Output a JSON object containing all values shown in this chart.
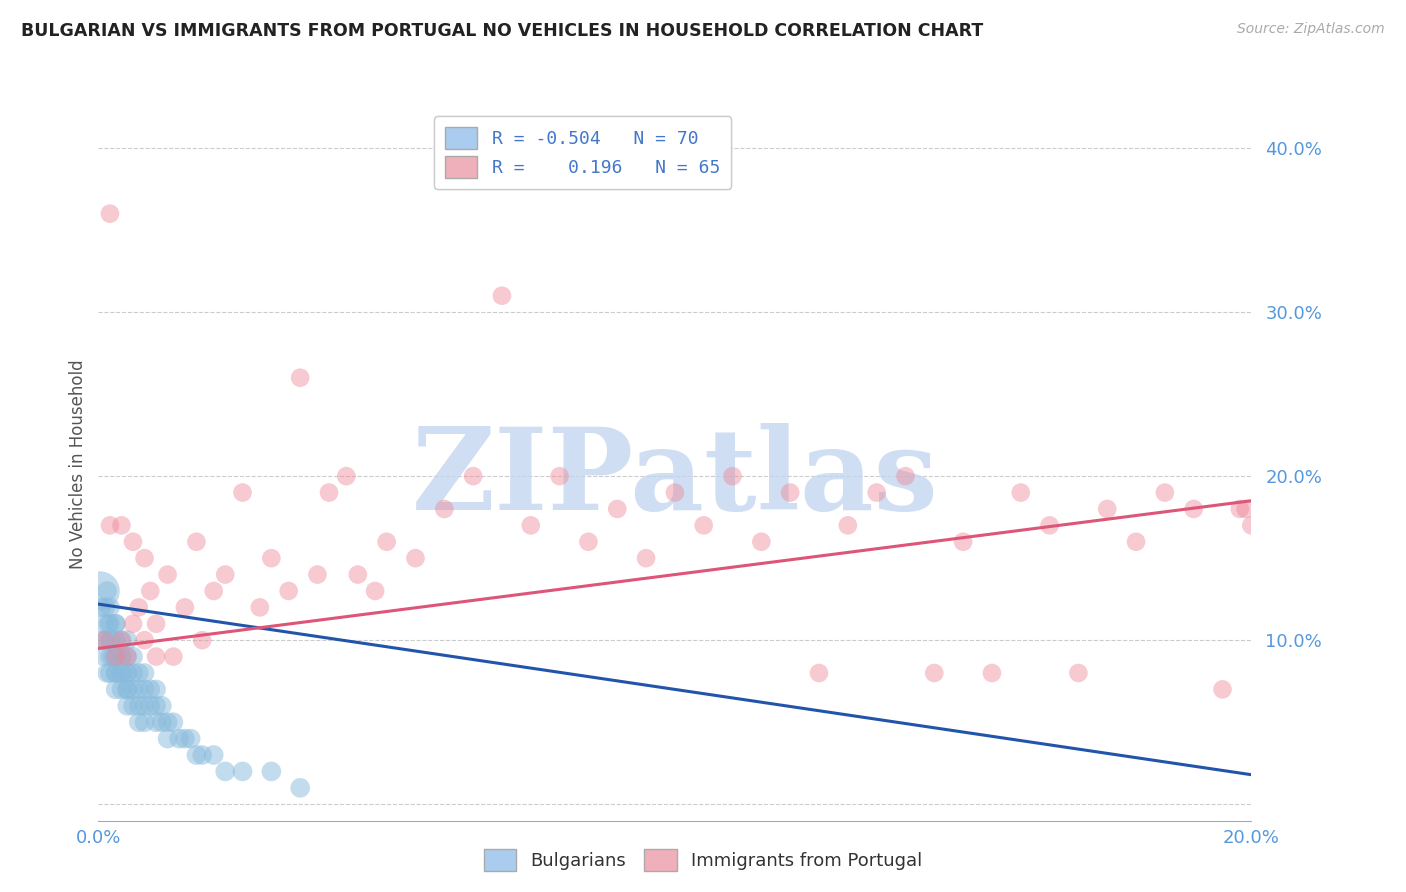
{
  "title": "BULGARIAN VS IMMIGRANTS FROM PORTUGAL NO VEHICLES IN HOUSEHOLD CORRELATION CHART",
  "source": "Source: ZipAtlas.com",
  "ylabel": "No Vehicles in Household",
  "yticks": [
    0.0,
    0.1,
    0.2,
    0.3,
    0.4
  ],
  "ytick_labels": [
    "",
    "10.0%",
    "20.0%",
    "30.0%",
    "40.0%"
  ],
  "xtick_labels": [
    "0.0%",
    "20.0%"
  ],
  "xlim": [
    0.0,
    0.2
  ],
  "ylim": [
    -0.01,
    0.425
  ],
  "watermark": "ZIPatlas",
  "watermark_color": "#c0d4ee",
  "blue_color": "#88bbdd",
  "blue_line_color": "#2255aa",
  "pink_color": "#ee8899",
  "pink_line_color": "#dd5577",
  "dot_size": 180,
  "blue_alpha": 0.5,
  "pink_alpha": 0.45,
  "blue_line_start_y": 0.122,
  "blue_line_end_y": 0.018,
  "pink_line_start_y": 0.095,
  "pink_line_end_y": 0.185,
  "bulgarians_x": [
    0.0003,
    0.0005,
    0.0008,
    0.001,
    0.001,
    0.0012,
    0.0013,
    0.0015,
    0.0015,
    0.0017,
    0.002,
    0.002,
    0.002,
    0.002,
    0.002,
    0.0022,
    0.0025,
    0.003,
    0.003,
    0.003,
    0.003,
    0.003,
    0.003,
    0.003,
    0.003,
    0.004,
    0.004,
    0.004,
    0.004,
    0.004,
    0.004,
    0.005,
    0.005,
    0.005,
    0.005,
    0.005,
    0.005,
    0.005,
    0.006,
    0.006,
    0.006,
    0.006,
    0.007,
    0.007,
    0.007,
    0.007,
    0.008,
    0.008,
    0.008,
    0.008,
    0.009,
    0.009,
    0.01,
    0.01,
    0.01,
    0.011,
    0.011,
    0.012,
    0.012,
    0.013,
    0.014,
    0.015,
    0.016,
    0.017,
    0.018,
    0.02,
    0.022,
    0.025,
    0.03,
    0.035
  ],
  "bulgarians_y": [
    0.13,
    0.12,
    0.1,
    0.11,
    0.09,
    0.12,
    0.1,
    0.13,
    0.08,
    0.11,
    0.12,
    0.11,
    0.09,
    0.08,
    0.1,
    0.1,
    0.09,
    0.11,
    0.1,
    0.09,
    0.08,
    0.09,
    0.07,
    0.08,
    0.11,
    0.09,
    0.08,
    0.07,
    0.09,
    0.1,
    0.08,
    0.08,
    0.07,
    0.09,
    0.06,
    0.08,
    0.07,
    0.1,
    0.07,
    0.08,
    0.06,
    0.09,
    0.07,
    0.06,
    0.08,
    0.05,
    0.07,
    0.06,
    0.05,
    0.08,
    0.06,
    0.07,
    0.06,
    0.05,
    0.07,
    0.06,
    0.05,
    0.05,
    0.04,
    0.05,
    0.04,
    0.04,
    0.04,
    0.03,
    0.03,
    0.03,
    0.02,
    0.02,
    0.02,
    0.01
  ],
  "bulgarians_sizes": [
    800,
    200,
    200,
    200,
    200,
    200,
    200,
    200,
    200,
    200,
    200,
    200,
    200,
    200,
    200,
    200,
    200,
    200,
    200,
    200,
    200,
    200,
    200,
    200,
    200,
    200,
    200,
    200,
    200,
    200,
    200,
    200,
    200,
    200,
    200,
    200,
    200,
    200,
    200,
    200,
    200,
    200,
    200,
    200,
    200,
    200,
    200,
    200,
    200,
    200,
    200,
    200,
    200,
    200,
    200,
    200,
    200,
    200,
    200,
    200,
    200,
    200,
    200,
    200,
    200,
    200,
    200,
    200,
    200,
    200
  ],
  "portugal_x": [
    0.001,
    0.002,
    0.003,
    0.004,
    0.005,
    0.006,
    0.007,
    0.008,
    0.009,
    0.01,
    0.012,
    0.013,
    0.015,
    0.017,
    0.018,
    0.02,
    0.022,
    0.025,
    0.028,
    0.03,
    0.033,
    0.035,
    0.038,
    0.04,
    0.043,
    0.045,
    0.048,
    0.05,
    0.055,
    0.06,
    0.065,
    0.07,
    0.075,
    0.08,
    0.085,
    0.09,
    0.095,
    0.1,
    0.105,
    0.11,
    0.115,
    0.12,
    0.125,
    0.13,
    0.135,
    0.14,
    0.145,
    0.15,
    0.155,
    0.16,
    0.165,
    0.17,
    0.175,
    0.18,
    0.185,
    0.19,
    0.195,
    0.198,
    0.199,
    0.2,
    0.002,
    0.004,
    0.006,
    0.008,
    0.01
  ],
  "portugal_y": [
    0.1,
    0.36,
    0.09,
    0.1,
    0.09,
    0.11,
    0.12,
    0.1,
    0.13,
    0.11,
    0.14,
    0.09,
    0.12,
    0.16,
    0.1,
    0.13,
    0.14,
    0.19,
    0.12,
    0.15,
    0.13,
    0.26,
    0.14,
    0.19,
    0.2,
    0.14,
    0.13,
    0.16,
    0.15,
    0.18,
    0.2,
    0.31,
    0.17,
    0.2,
    0.16,
    0.18,
    0.15,
    0.19,
    0.17,
    0.2,
    0.16,
    0.19,
    0.08,
    0.17,
    0.19,
    0.2,
    0.08,
    0.16,
    0.08,
    0.19,
    0.17,
    0.08,
    0.18,
    0.16,
    0.19,
    0.18,
    0.07,
    0.18,
    0.18,
    0.17,
    0.17,
    0.17,
    0.16,
    0.15,
    0.09
  ]
}
